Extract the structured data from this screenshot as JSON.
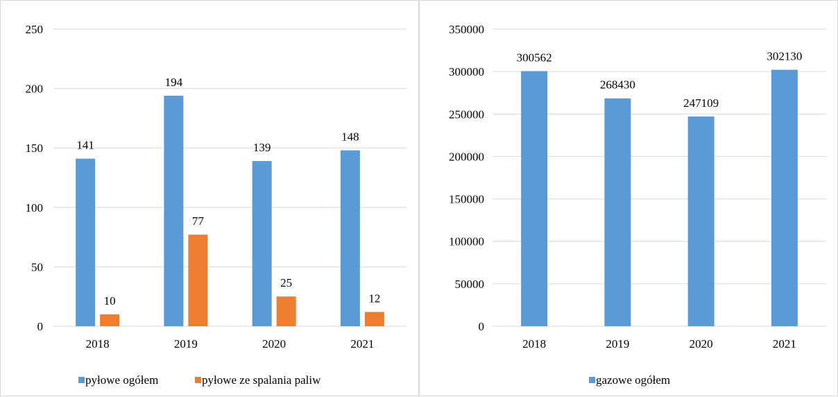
{
  "chart_data": [
    {
      "type": "bar",
      "categories": [
        "2018",
        "2019",
        "2020",
        "2021"
      ],
      "series": [
        {
          "name": "pyłowe ogółem",
          "values": [
            141,
            194,
            139,
            148
          ],
          "color": "#5b9bd5"
        },
        {
          "name": "pyłowe ze spalania paliw",
          "values": [
            10,
            77,
            25,
            12
          ],
          "color": "#ed7d31"
        }
      ],
      "ylim": [
        0,
        250
      ],
      "yticks": [
        0,
        50,
        100,
        150,
        200,
        250
      ],
      "grid": true,
      "legend_position": "bottom"
    },
    {
      "type": "bar",
      "categories": [
        "2018",
        "2019",
        "2020",
        "2021"
      ],
      "series": [
        {
          "name": "gazowe ogółem",
          "values": [
            300562,
            268430,
            247109,
            302130
          ],
          "color": "#5b9bd5"
        }
      ],
      "ylim": [
        0,
        350000
      ],
      "yticks": [
        0,
        50000,
        100000,
        150000,
        200000,
        250000,
        300000,
        350000
      ],
      "grid": true,
      "legend_position": "bottom"
    }
  ]
}
